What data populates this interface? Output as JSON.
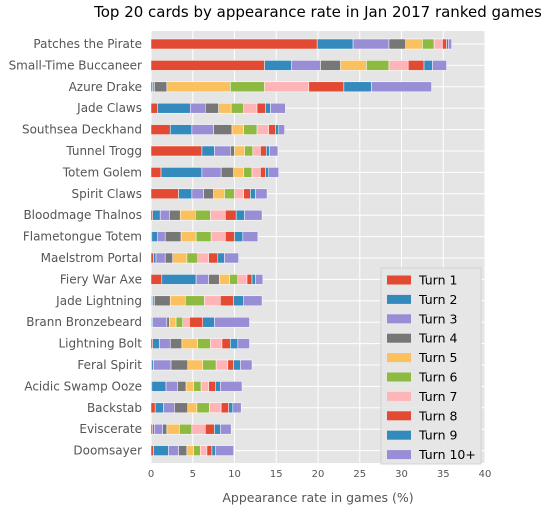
{
  "chart_data": {
    "type": "bar",
    "orientation": "horizontal",
    "stacked": true,
    "title": "Top 20 cards by appearance rate in Jan 2017 ranked games",
    "xlabel": "Appearance rate in games (%)",
    "ylabel": "",
    "xlim": [
      0,
      40
    ],
    "xticks": [
      "0",
      "5",
      "10",
      "15",
      "20",
      "25",
      "30",
      "35",
      "40"
    ],
    "grid": true,
    "legend_position": "lower right",
    "categories": [
      "Patches the Pirate",
      "Small-Time Buccaneer",
      "Azure Drake",
      "Jade Claws",
      "Southsea Deckhand",
      "Tunnel Trogg",
      "Totem Golem",
      "Spirit Claws",
      "Bloodmage Thalnos",
      "Flametongue Totem",
      "Maelstrom Portal",
      "Fiery War Axe",
      "Jade Lightning",
      "Brann Bronzebeard",
      "Lightning Bolt",
      "Feral Spirit",
      "Acidic Swamp Ooze",
      "Backstab",
      "Eviscerate",
      "Doomsayer"
    ],
    "series": [
      {
        "name": "Turn 1",
        "color": "#E24A33",
        "values": [
          19.9,
          13.6,
          0.0,
          0.8,
          2.3,
          6.1,
          1.2,
          3.3,
          0.2,
          0.1,
          0.3,
          1.3,
          0.1,
          0.1,
          0.2,
          0.1,
          0.1,
          0.5,
          0.2,
          0.3
        ]
      },
      {
        "name": "Turn 2",
        "color": "#348ABD",
        "values": [
          4.3,
          3.2,
          0.2,
          3.9,
          2.6,
          1.5,
          4.9,
          1.6,
          0.9,
          0.7,
          0.3,
          4.1,
          0.1,
          0.1,
          0.8,
          0.2,
          1.7,
          1.0,
          0.2,
          1.8
        ]
      },
      {
        "name": "Turn 3",
        "color": "#988ED5",
        "values": [
          4.3,
          3.5,
          0.2,
          1.8,
          2.6,
          1.9,
          2.3,
          1.4,
          1.1,
          0.9,
          1.1,
          1.5,
          0.2,
          1.7,
          1.3,
          2.1,
          1.4,
          1.3,
          1.0,
          1.2
        ]
      },
      {
        "name": "Turn 4",
        "color": "#777777",
        "values": [
          2.0,
          2.4,
          1.5,
          1.6,
          2.2,
          0.5,
          1.5,
          1.2,
          1.3,
          1.9,
          0.9,
          1.3,
          1.9,
          0.3,
          1.4,
          2.0,
          1.0,
          1.6,
          0.5,
          1.0
        ]
      },
      {
        "name": "Turn 5",
        "color": "#FBC15E",
        "values": [
          2.0,
          3.1,
          7.6,
          1.5,
          1.4,
          1.2,
          1.2,
          1.3,
          1.8,
          1.8,
          1.7,
          1.2,
          1.8,
          0.8,
          1.9,
          1.8,
          0.9,
          1.1,
          1.5,
          0.8
        ]
      },
      {
        "name": "Turn 6",
        "color": "#8EBA42",
        "values": [
          1.4,
          2.7,
          4.1,
          1.5,
          1.6,
          1.0,
          1.0,
          1.2,
          1.8,
          1.8,
          1.3,
          1.0,
          2.3,
          0.8,
          1.5,
          1.6,
          0.9,
          1.5,
          1.5,
          0.8
        ]
      },
      {
        "name": "Turn 7",
        "color": "#FFB5B8",
        "values": [
          1.0,
          2.3,
          5.3,
          1.6,
          1.4,
          0.9,
          1.0,
          1.1,
          1.8,
          1.7,
          1.3,
          1.1,
          1.9,
          0.8,
          1.4,
          1.4,
          0.9,
          1.4,
          1.6,
          0.8
        ]
      },
      {
        "name": "Turn 8",
        "color": "#E24A33",
        "values": [
          0.5,
          1.9,
          4.2,
          1.0,
          0.8,
          0.7,
          0.6,
          0.8,
          1.3,
          1.1,
          1.1,
          0.6,
          1.6,
          1.6,
          1.0,
          0.7,
          0.8,
          0.9,
          1.1,
          0.6
        ]
      },
      {
        "name": "Turn 9",
        "color": "#348ABD",
        "values": [
          0.2,
          1.0,
          3.3,
          0.6,
          0.4,
          0.4,
          0.4,
          0.6,
          1.0,
          1.0,
          0.8,
          0.4,
          1.2,
          1.4,
          0.9,
          0.8,
          0.6,
          0.5,
          0.7,
          0.4
        ]
      },
      {
        "name": "Turn 10+",
        "color": "#988ED5",
        "values": [
          0.4,
          1.7,
          7.2,
          1.8,
          0.7,
          1.0,
          1.2,
          1.4,
          2.1,
          1.8,
          1.7,
          0.9,
          2.2,
          4.2,
          1.4,
          1.4,
          2.6,
          1.0,
          1.3,
          2.2
        ]
      }
    ]
  }
}
